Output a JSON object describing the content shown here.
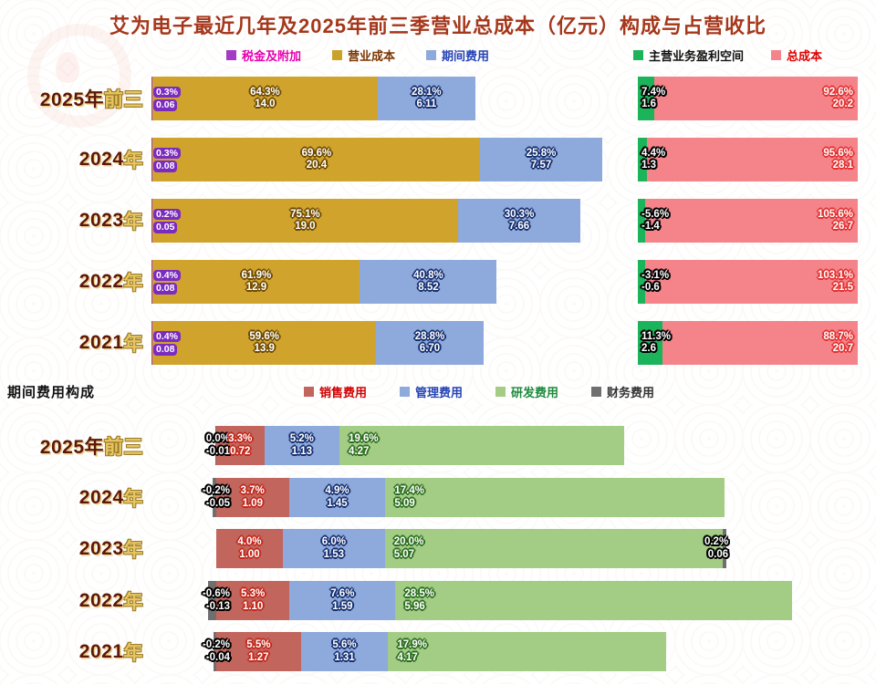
{
  "title": "艾为电子最近几年及2025年前三季营业总成本（亿元）构成与占营收比",
  "section2_title": "期间费用构成",
  "colors": {
    "title_text": "#A5371B",
    "year_main": "#5E1708",
    "year_suffix": "#E7C563",
    "tax_surcharge": "#A43BC4",
    "operating_cost": "#D0A42C",
    "period_expense": "#8EA9DB",
    "profit_margin": "#1CB45A",
    "total_cost": "#F5838A",
    "selling_expense": "#C2655C",
    "admin_expense": "#8EA9DB",
    "rd_expense": "#A3CC85",
    "finance_expense": "#6F6F6F"
  },
  "top_legend": [
    {
      "label": "税金及附加",
      "swatch": "#A43BC4",
      "text": "#E800B0"
    },
    {
      "label": "营业成本",
      "swatch": "#C9A227",
      "text": "#7A3500"
    },
    {
      "label": "期间费用",
      "swatch": "#8EA9DB",
      "text": "#2543B5"
    }
  ],
  "top_legend_right": [
    {
      "label": "主营业务盈利空间",
      "swatch": "#1CB45A",
      "text": "#111111"
    },
    {
      "label": "总成本",
      "swatch": "#F5838A",
      "text": "#E00000"
    }
  ],
  "bottom_legend": [
    {
      "label": "销售费用",
      "swatch": "#C2655C",
      "text": "#D00000"
    },
    {
      "label": "管理费用",
      "swatch": "#8EA9DB",
      "text": "#2543B5"
    },
    {
      "label": "研发费用",
      "swatch": "#A3CC85",
      "text": "#1E8A3C"
    },
    {
      "label": "财务费用",
      "swatch": "#6F6F6F",
      "text": "#333333"
    }
  ],
  "chart_data": [
    {
      "type": "bar",
      "orientation": "horizontal-stacked",
      "title": "营业总成本（亿元）构成与占营收比",
      "unit": "亿元",
      "categories": [
        "2025年前三",
        "2024年",
        "2023年",
        "2022年",
        "2021年"
      ],
      "category_parts": [
        [
          "2025年",
          "前三"
        ],
        [
          "2024",
          "年"
        ],
        [
          "2023",
          "年"
        ],
        [
          "2022",
          "年"
        ],
        [
          "2021",
          "年"
        ]
      ],
      "legend": [
        "税金及附加",
        "营业成本",
        "期间费用",
        "主营业务盈利空间",
        "总成本"
      ],
      "series": [
        {
          "name": "税金及附加",
          "color": "#A43BC4",
          "pct": [
            "0.3%",
            "0.3%",
            "0.2%",
            "0.4%",
            "0.4%"
          ],
          "amount": [
            "0.06",
            "0.08",
            "0.05",
            "0.08",
            "0.08"
          ]
        },
        {
          "name": "营业成本",
          "color": "#D0A42C",
          "pct": [
            "64.3%",
            "69.6%",
            "75.1%",
            "61.9%",
            "59.6%"
          ],
          "amount": [
            "14.0",
            "20.4",
            "19.0",
            "12.9",
            "13.9"
          ]
        },
        {
          "name": "期间费用",
          "color": "#8EA9DB",
          "pct": [
            "28.1%",
            "25.8%",
            "30.3%",
            "40.8%",
            "28.8%"
          ],
          "amount": [
            "6.11",
            "7.57",
            "7.66",
            "8.52",
            "6.70"
          ]
        },
        {
          "name": "主营业务盈利空间",
          "color": "#1CB45A",
          "pct": [
            "7.4%",
            "4.4%",
            "-5.6%",
            "-3.1%",
            "11.3%"
          ],
          "amount": [
            "1.6",
            "1.3",
            "-1.4",
            "-0.6",
            "2.6"
          ]
        },
        {
          "name": "总成本",
          "color": "#F5838A",
          "pct": [
            "92.6%",
            "95.6%",
            "105.6%",
            "103.1%",
            "88.7%"
          ],
          "amount": [
            "20.2",
            "28.1",
            "26.7",
            "21.5",
            "20.7"
          ]
        }
      ]
    },
    {
      "type": "bar",
      "orientation": "horizontal-stacked",
      "title": "期间费用构成",
      "unit": "亿元",
      "categories": [
        "2025年前三",
        "2024年",
        "2023年",
        "2022年",
        "2021年"
      ],
      "category_parts": [
        [
          "2025年",
          "前三"
        ],
        [
          "2024",
          "年"
        ],
        [
          "2023",
          "年"
        ],
        [
          "2022",
          "年"
        ],
        [
          "2021",
          "年"
        ]
      ],
      "legend": [
        "销售费用",
        "管理费用",
        "研发费用",
        "财务费用"
      ],
      "series": [
        {
          "name": "财务费用",
          "color": "#6F6F6F",
          "pct": [
            "0.0%",
            "-0.2%",
            "0.2%",
            "-0.6%",
            "-0.2%"
          ],
          "amount": [
            "-0.01",
            "-0.05",
            "0.06",
            "-0.13",
            "-0.04"
          ]
        },
        {
          "name": "销售费用",
          "color": "#C2655C",
          "pct": [
            "3.3%",
            "3.7%",
            "4.0%",
            "5.3%",
            "5.5%"
          ],
          "amount": [
            "0.72",
            "1.09",
            "1.00",
            "1.10",
            "1.27"
          ]
        },
        {
          "name": "管理费用",
          "color": "#8EA9DB",
          "pct": [
            "5.2%",
            "4.9%",
            "6.0%",
            "7.6%",
            "5.6%"
          ],
          "amount": [
            "1.13",
            "1.45",
            "1.53",
            "1.59",
            "1.31"
          ]
        },
        {
          "name": "研发费用",
          "color": "#A3CC85",
          "pct": [
            "19.6%",
            "17.4%",
            "20.0%",
            "28.5%",
            "17.9%"
          ],
          "amount": [
            "4.27",
            "5.09",
            "5.07",
            "5.96",
            "4.17"
          ]
        }
      ]
    }
  ]
}
